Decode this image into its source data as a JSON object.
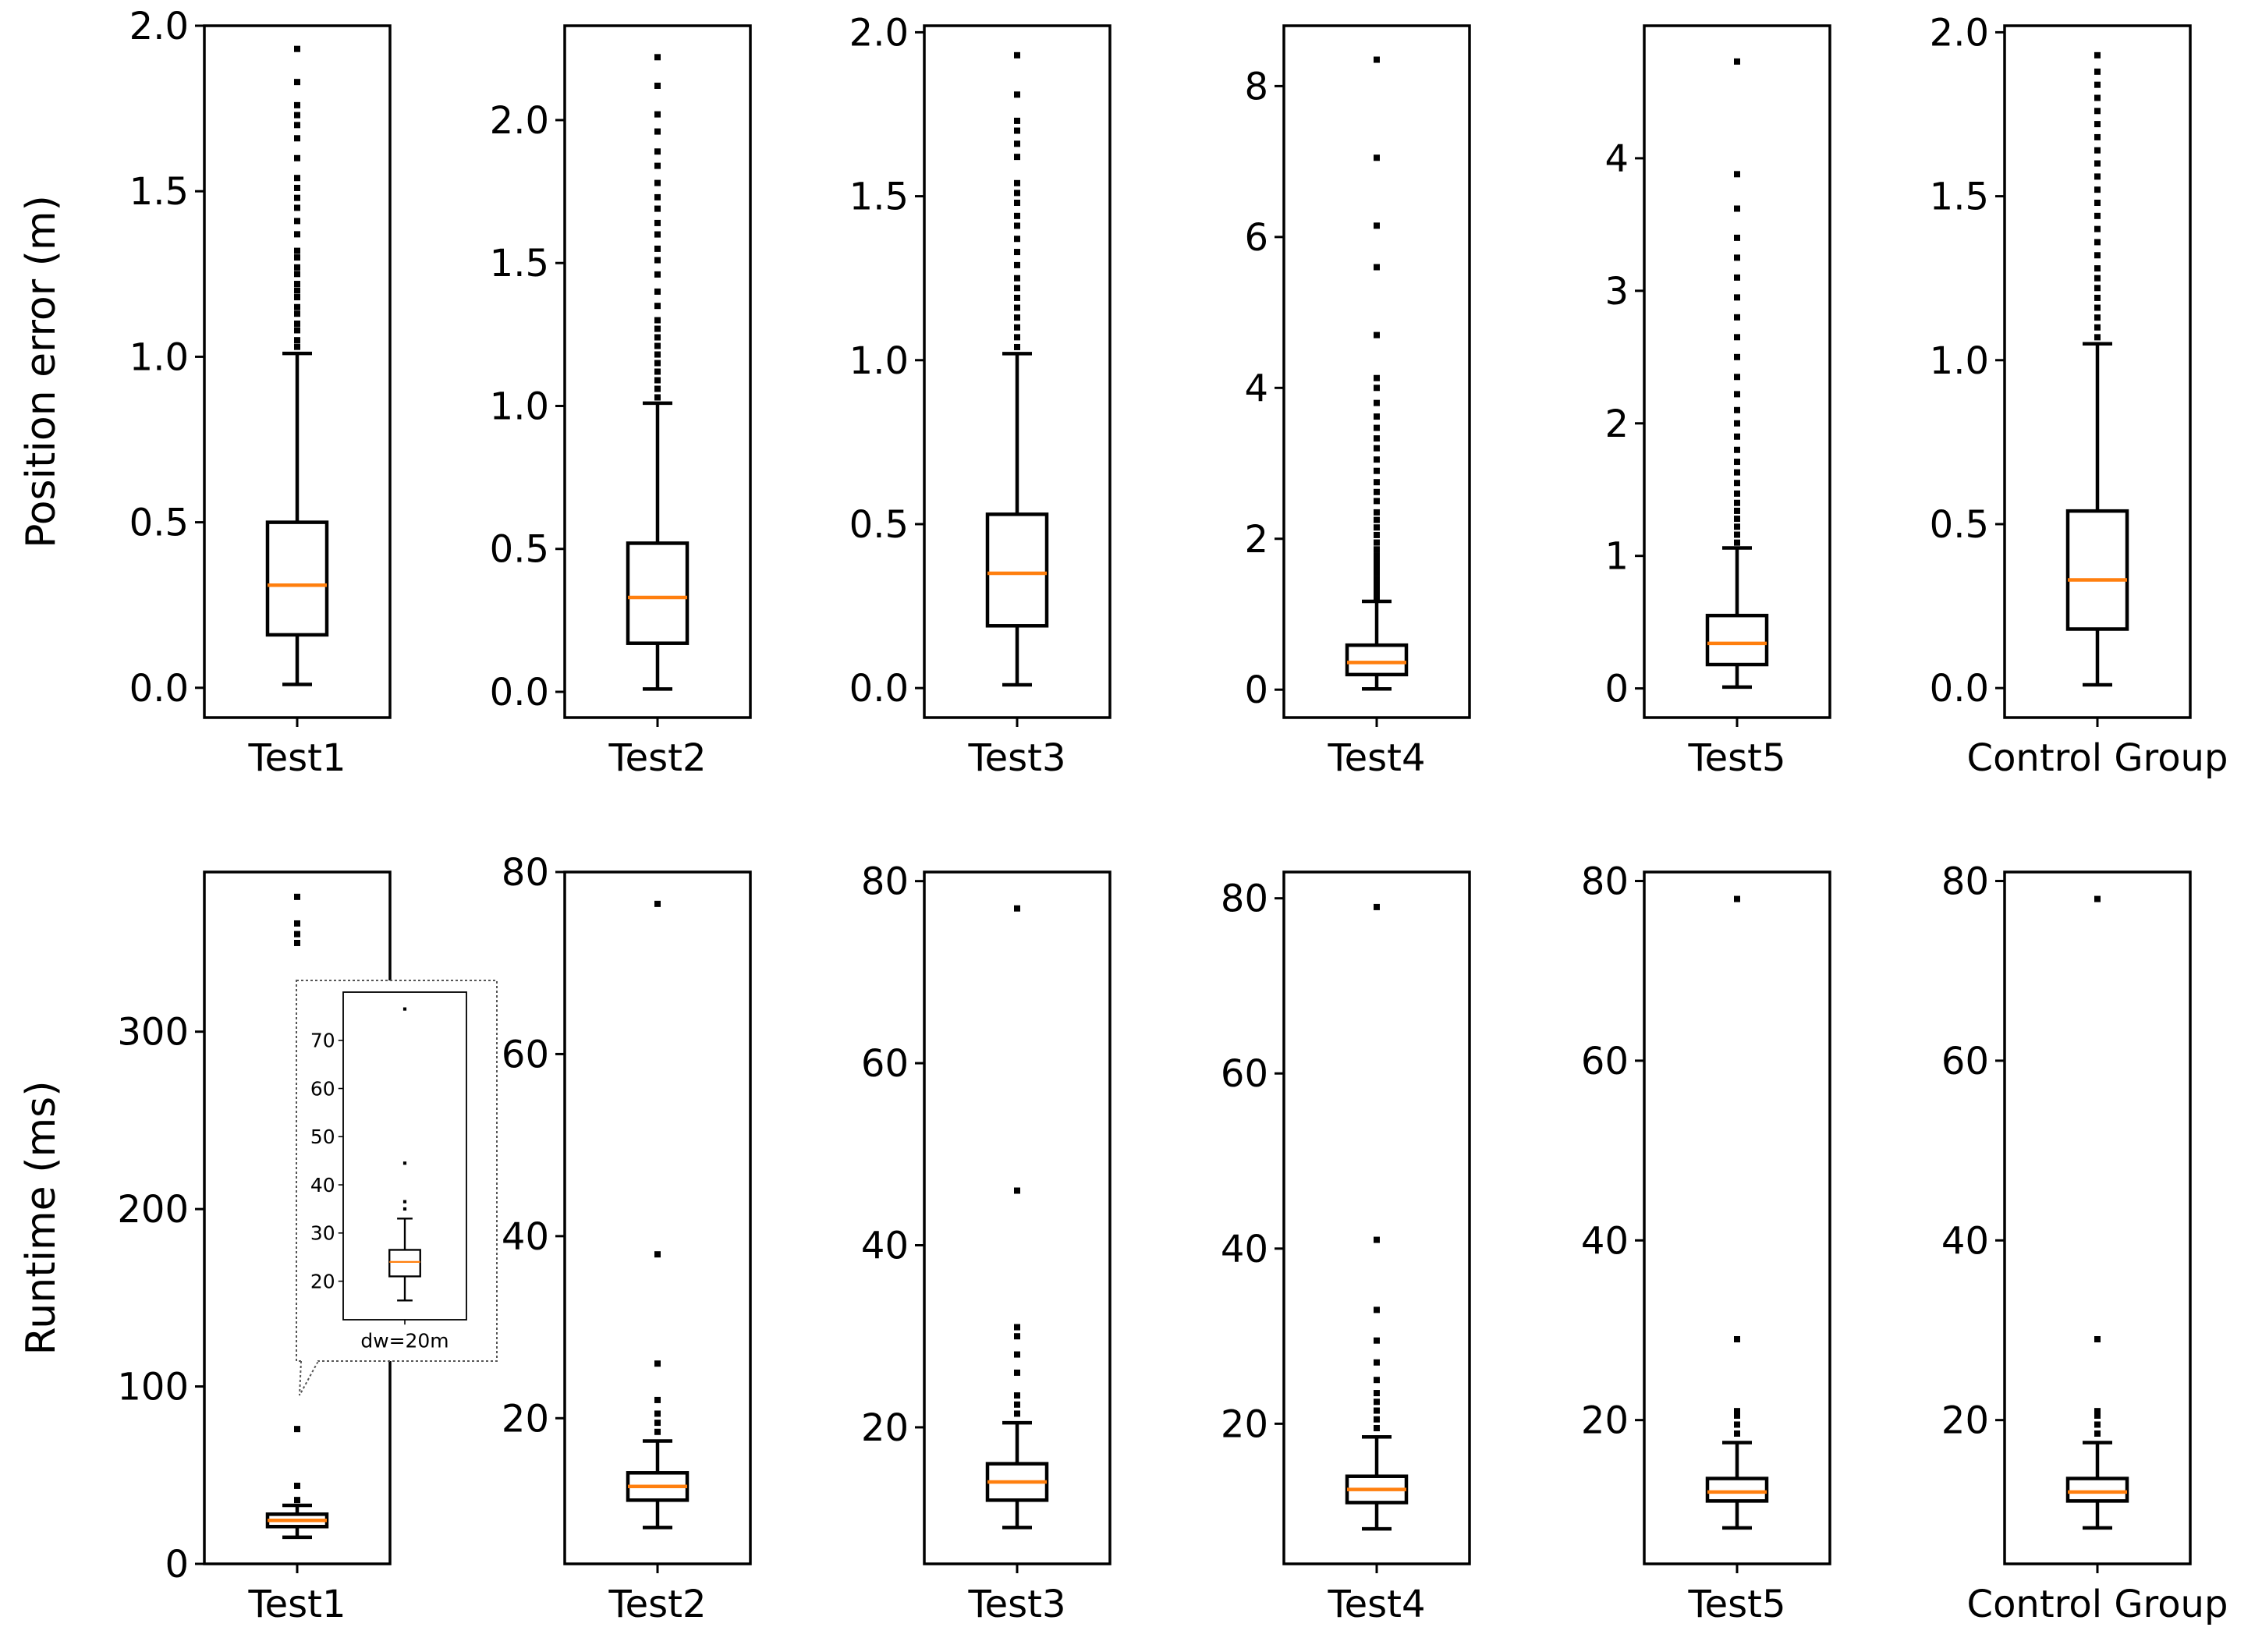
{
  "figure": {
    "colors": {
      "box": "#000000",
      "median": "#ff7f0e",
      "background": "#ffffff"
    }
  },
  "chart_data": [
    {
      "type": "box",
      "category": "Test1",
      "ylabel": "Position error (m)",
      "ylim": [
        -0.09,
        2.0
      ],
      "yticks": [
        0.0,
        0.5,
        1.0,
        1.5,
        2.0
      ],
      "ytick_labels": [
        "0.0",
        "0.5",
        "1.0",
        "1.5",
        "2.0"
      ],
      "stats": {
        "whislo": 0.01,
        "q1": 0.16,
        "median": 0.31,
        "q3": 0.5,
        "whishi": 1.01
      },
      "fliers": [
        1.03,
        1.05,
        1.08,
        1.1,
        1.13,
        1.15,
        1.18,
        1.2,
        1.22,
        1.25,
        1.27,
        1.3,
        1.32,
        1.37,
        1.41,
        1.45,
        1.48,
        1.51,
        1.54,
        1.6,
        1.66,
        1.7,
        1.73,
        1.76,
        1.83,
        1.93
      ]
    },
    {
      "type": "box",
      "category": "Test2",
      "ylabel": "",
      "ylim": [
        -0.09,
        2.33
      ],
      "yticks": [
        0.0,
        0.5,
        1.0,
        1.5,
        2.0
      ],
      "ytick_labels": [
        "0.0",
        "0.5",
        "1.0",
        "1.5",
        "2.0"
      ],
      "stats": {
        "whislo": 0.01,
        "q1": 0.17,
        "median": 0.33,
        "q3": 0.52,
        "whishi": 1.01
      },
      "fliers": [
        1.03,
        1.06,
        1.09,
        1.12,
        1.15,
        1.18,
        1.21,
        1.24,
        1.27,
        1.3,
        1.35,
        1.4,
        1.46,
        1.51,
        1.55,
        1.6,
        1.64,
        1.69,
        1.73,
        1.78,
        1.84,
        1.89,
        1.96,
        2.02,
        2.12,
        2.22
      ]
    },
    {
      "type": "box",
      "category": "Test3",
      "ylabel": "",
      "ylim": [
        -0.09,
        2.02
      ],
      "yticks": [
        0.0,
        0.5,
        1.0,
        1.5,
        2.0
      ],
      "ytick_labels": [
        "0.0",
        "0.5",
        "1.0",
        "1.5",
        "2.0"
      ],
      "stats": {
        "whislo": 0.01,
        "q1": 0.19,
        "median": 0.35,
        "q3": 0.53,
        "whishi": 1.02
      },
      "fliers": [
        1.04,
        1.07,
        1.1,
        1.13,
        1.16,
        1.19,
        1.22,
        1.25,
        1.29,
        1.33,
        1.37,
        1.41,
        1.44,
        1.48,
        1.51,
        1.54,
        1.62,
        1.66,
        1.7,
        1.73,
        1.81,
        1.93
      ]
    },
    {
      "type": "box",
      "category": "Test4",
      "ylabel": "",
      "ylim": [
        -0.37,
        8.8
      ],
      "yticks": [
        0,
        2,
        4,
        6,
        8
      ],
      "ytick_labels": [
        "0",
        "2",
        "4",
        "6",
        "8"
      ],
      "stats": {
        "whislo": 0.01,
        "q1": 0.2,
        "median": 0.36,
        "q3": 0.59,
        "whishi": 1.17
      },
      "fliers": [
        1.2,
        1.26,
        1.33,
        1.4,
        1.47,
        1.55,
        1.62,
        1.7,
        1.78,
        1.86,
        1.95,
        2.05,
        2.15,
        2.25,
        2.35,
        2.5,
        2.62,
        2.75,
        2.9,
        3.05,
        3.2,
        3.33,
        3.47,
        3.62,
        3.8,
        4.0,
        4.13,
        4.7,
        5.6,
        6.15,
        7.05,
        8.35
      ]
    },
    {
      "type": "box",
      "category": "Test5",
      "ylabel": "",
      "ylim": [
        -0.22,
        5.0
      ],
      "yticks": [
        0,
        1,
        2,
        3,
        4
      ],
      "ytick_labels": [
        "0",
        "1",
        "2",
        "3",
        "4"
      ],
      "stats": {
        "whislo": 0.01,
        "q1": 0.18,
        "median": 0.34,
        "q3": 0.55,
        "whishi": 1.06
      },
      "fliers": [
        1.1,
        1.16,
        1.22,
        1.28,
        1.34,
        1.4,
        1.47,
        1.55,
        1.63,
        1.71,
        1.8,
        1.9,
        2.0,
        2.1,
        2.22,
        2.35,
        2.5,
        2.65,
        2.8,
        2.95,
        3.1,
        3.25,
        3.4,
        3.62,
        3.88,
        4.73
      ]
    },
    {
      "type": "box",
      "category": "Control Group",
      "ylabel": "",
      "ylim": [
        -0.09,
        2.02
      ],
      "yticks": [
        0.0,
        0.5,
        1.0,
        1.5,
        2.0
      ],
      "ytick_labels": [
        "0.0",
        "0.5",
        "1.0",
        "1.5",
        "2.0"
      ],
      "stats": {
        "whislo": 0.01,
        "q1": 0.18,
        "median": 0.33,
        "q3": 0.54,
        "whishi": 1.05
      },
      "fliers": [
        1.07,
        1.1,
        1.13,
        1.16,
        1.19,
        1.22,
        1.25,
        1.28,
        1.32,
        1.36,
        1.4,
        1.44,
        1.48,
        1.52,
        1.56,
        1.6,
        1.64,
        1.68,
        1.72,
        1.76,
        1.8,
        1.84,
        1.88,
        1.93
      ]
    },
    {
      "type": "box",
      "category": "Test1",
      "ylabel": "Runtime (ms)",
      "ylim": [
        0,
        390
      ],
      "yticks": [
        0,
        100,
        200,
        300
      ],
      "ytick_labels": [
        "0",
        "100",
        "200",
        "300"
      ],
      "stats": {
        "whislo": 15,
        "q1": 21,
        "median": 24.5,
        "q3": 28,
        "whishi": 33
      },
      "fliers": [
        36,
        44,
        76,
        350,
        355,
        361,
        376
      ],
      "inset": {
        "category": "dw=20m",
        "ylim": [
          12,
          80
        ],
        "yticks": [
          20,
          30,
          40,
          50,
          60,
          70
        ],
        "ytick_labels": [
          "20",
          "30",
          "40",
          "50",
          "60",
          "70"
        ],
        "stats": {
          "whislo": 16,
          "q1": 21,
          "median": 24,
          "q3": 26.5,
          "whishi": 33
        },
        "fliers": [
          35,
          36.5,
          44.5,
          76.5
        ]
      }
    },
    {
      "type": "box",
      "category": "Test2",
      "ylabel": "",
      "ylim": [
        4,
        80
      ],
      "yticks": [
        20,
        40,
        60,
        80
      ],
      "ytick_labels": [
        "20",
        "40",
        "60",
        "80"
      ],
      "stats": {
        "whislo": 8,
        "q1": 11,
        "median": 12.5,
        "q3": 14,
        "whishi": 17.5
      },
      "fliers": [
        18.5,
        19.5,
        20.5,
        22,
        26,
        38,
        76.5
      ]
    },
    {
      "type": "box",
      "category": "Test3",
      "ylabel": "",
      "ylim": [
        5,
        81
      ],
      "yticks": [
        20,
        40,
        60,
        80
      ],
      "ytick_labels": [
        "20",
        "40",
        "60",
        "80"
      ],
      "stats": {
        "whislo": 9,
        "q1": 12,
        "median": 14,
        "q3": 16,
        "whishi": 20.5
      },
      "fliers": [
        21.5,
        22.5,
        23.5,
        26,
        28,
        30,
        31,
        46,
        77
      ]
    },
    {
      "type": "box",
      "category": "Test4",
      "ylabel": "",
      "ylim": [
        4,
        83
      ],
      "yticks": [
        20,
        40,
        60,
        80
      ],
      "ytick_labels": [
        "20",
        "40",
        "60",
        "80"
      ],
      "stats": {
        "whislo": 8,
        "q1": 11,
        "median": 12.5,
        "q3": 14,
        "whishi": 18.5
      },
      "fliers": [
        19.5,
        20.5,
        21.5,
        22.5,
        23.5,
        25,
        27,
        29.5,
        33,
        41,
        79
      ]
    },
    {
      "type": "box",
      "category": "Test5",
      "ylabel": "",
      "ylim": [
        4,
        81
      ],
      "yticks": [
        20,
        40,
        60,
        80
      ],
      "ytick_labels": [
        "20",
        "40",
        "60",
        "80"
      ],
      "stats": {
        "whislo": 8,
        "q1": 11,
        "median": 12,
        "q3": 13.5,
        "whishi": 17.5
      },
      "fliers": [
        18.5,
        19.5,
        20.5,
        21,
        29,
        78
      ]
    },
    {
      "type": "box",
      "category": "Control Group",
      "ylabel": "",
      "ylim": [
        4,
        81
      ],
      "yticks": [
        20,
        40,
        60,
        80
      ],
      "ytick_labels": [
        "20",
        "40",
        "60",
        "80"
      ],
      "stats": {
        "whislo": 8,
        "q1": 11,
        "median": 12,
        "q3": 13.5,
        "whishi": 17.5
      },
      "fliers": [
        18.5,
        19.5,
        20.5,
        21,
        29,
        78
      ]
    }
  ]
}
